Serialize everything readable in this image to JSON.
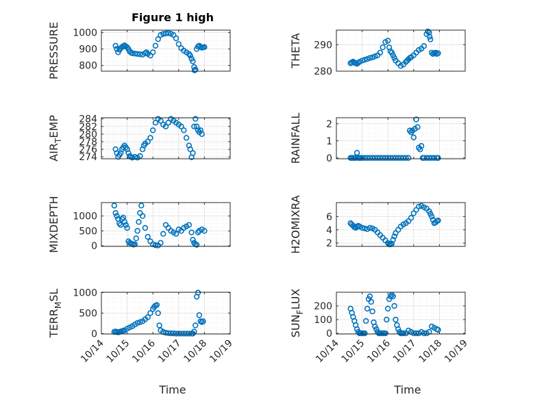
{
  "chart_data": [
    {
      "id": "pressure",
      "type": "scatter",
      "title": "Figure 1 high",
      "ylabel": "PRESSURE",
      "ylabel_parts": [],
      "xlabel": "",
      "yticks": [
        800,
        900,
        1000
      ],
      "ylim": [
        765,
        1015
      ],
      "xlim": [
        0,
        5
      ],
      "xticks": [
        0,
        1,
        2,
        3,
        4,
        5
      ],
      "xticklabels": [],
      "show_x_ticklabels": false,
      "grid": true,
      "color": "#0072BD",
      "series": [
        {
          "x": [
            0.55,
            0.6,
            0.65,
            0.7,
            0.75,
            0.8,
            0.85,
            0.9,
            0.95,
            1.0,
            1.05,
            1.1,
            1.15,
            1.2,
            1.3,
            1.4,
            1.5,
            1.6,
            1.7,
            1.75,
            1.8,
            1.9,
            2.0,
            2.1,
            2.2,
            2.3,
            2.4,
            2.5,
            2.6,
            2.7,
            2.8,
            2.9,
            3.0,
            3.1,
            3.2,
            3.3,
            3.4,
            3.45,
            3.5,
            3.55,
            3.6,
            3.62,
            3.65,
            3.7,
            3.75,
            3.8,
            3.85,
            3.9,
            3.95,
            4.0
          ],
          "y": [
            920,
            900,
            880,
            895,
            905,
            912,
            918,
            922,
            915,
            910,
            900,
            885,
            878,
            874,
            872,
            870,
            868,
            866,
            875,
            880,
            870,
            860,
            880,
            920,
            960,
            985,
            992,
            995,
            997,
            993,
            985,
            965,
            930,
            905,
            890,
            880,
            870,
            860,
            840,
            825,
            790,
            770,
            775,
            900,
            915,
            920,
            912,
            908,
            910,
            912
          ]
        }
      ]
    },
    {
      "id": "theta",
      "type": "scatter",
      "title": "",
      "ylabel": "THETA",
      "ylabel_parts": [],
      "xlabel": "",
      "yticks": [
        280,
        290
      ],
      "ylim": [
        280,
        295.5
      ],
      "xlim": [
        0,
        5
      ],
      "xticks": [
        0,
        1,
        2,
        3,
        4,
        5
      ],
      "xticklabels": [],
      "show_x_ticklabels": false,
      "grid": true,
      "color": "#0072BD",
      "series": [
        {
          "x": [
            0.55,
            0.6,
            0.65,
            0.7,
            0.75,
            0.8,
            0.85,
            0.9,
            1.0,
            1.1,
            1.2,
            1.3,
            1.4,
            1.5,
            1.6,
            1.7,
            1.8,
            1.9,
            2.0,
            2.05,
            2.1,
            2.15,
            2.2,
            2.25,
            2.3,
            2.4,
            2.5,
            2.6,
            2.7,
            2.75,
            2.8,
            2.85,
            2.9,
            3.0,
            3.1,
            3.2,
            3.3,
            3.4,
            3.5,
            3.55,
            3.6,
            3.62,
            3.65,
            3.7,
            3.75,
            3.8,
            3.85,
            3.9,
            3.95
          ],
          "y": [
            283,
            283.3,
            283.6,
            283.2,
            283.0,
            282.8,
            283.2,
            283.5,
            284.0,
            284.3,
            284.6,
            285.0,
            285.2,
            285.6,
            286.0,
            287.0,
            289.0,
            291.0,
            291.5,
            289.0,
            287.5,
            287.0,
            286.0,
            285.0,
            284.0,
            283.0,
            282.0,
            282.5,
            283.5,
            284.0,
            284.5,
            285.0,
            285.3,
            286.0,
            287.0,
            288.0,
            288.5,
            289.5,
            294.0,
            295.0,
            294.5,
            293.0,
            292.0,
            287.0,
            286.5,
            286.8,
            287.0,
            286.5,
            286.8
          ]
        }
      ]
    },
    {
      "id": "air-temp",
      "type": "scatter",
      "title": "",
      "ylabel": "AIR_TEMP",
      "ylabel_parts": [
        "AIR",
        "T",
        "EMP"
      ],
      "xlabel": "",
      "yticks": [
        274,
        276,
        278,
        280,
        282,
        284
      ],
      "ytick_labels": [
        "274",
        "276",
        "278",
        "280",
        "282",
        "284"
      ],
      "ylim": [
        273.5,
        284.3
      ],
      "xlim": [
        0,
        5
      ],
      "xticks": [
        0,
        1,
        2,
        3,
        4,
        5
      ],
      "xticklabels": [],
      "show_x_ticklabels": false,
      "grid": true,
      "color": "#0072BD",
      "series": [
        {
          "x": [
            0.55,
            0.6,
            0.65,
            0.7,
            0.75,
            0.8,
            0.85,
            0.9,
            0.95,
            1.0,
            1.05,
            1.1,
            1.15,
            1.2,
            1.3,
            1.4,
            1.5,
            1.6,
            1.65,
            1.7,
            1.8,
            1.9,
            2.0,
            2.1,
            2.2,
            2.3,
            2.4,
            2.5,
            2.6,
            2.7,
            2.8,
            2.9,
            3.0,
            3.1,
            3.2,
            3.3,
            3.4,
            3.45,
            3.5,
            3.55,
            3.6,
            3.65,
            3.7,
            3.75,
            3.8,
            3.85,
            3.9
          ],
          "y": [
            276,
            275,
            274,
            274.5,
            275,
            276,
            276.5,
            277,
            276.5,
            276,
            275,
            274.2,
            274.0,
            273.8,
            274.0,
            273.8,
            274.2,
            276,
            277,
            277.5,
            278,
            279,
            281,
            283,
            284,
            283.5,
            282.5,
            282,
            283,
            284,
            283.5,
            283,
            282.5,
            282,
            281,
            279,
            277,
            276,
            273.9,
            275,
            282,
            284,
            282,
            281,
            280.5,
            281,
            280
          ]
        }
      ]
    },
    {
      "id": "rainfall",
      "type": "scatter",
      "title": "",
      "ylabel": "RAINFALL",
      "ylabel_parts": [],
      "xlabel": "",
      "yticks": [
        0,
        1,
        2
      ],
      "ylim": [
        -0.05,
        2.35
      ],
      "xlim": [
        0,
        5
      ],
      "xticks": [
        0,
        1,
        2,
        3,
        4,
        5
      ],
      "xticklabels": [],
      "show_x_ticklabels": false,
      "grid": true,
      "color": "#0072BD",
      "series": [
        {
          "x": [
            0.55,
            0.6,
            0.65,
            0.7,
            0.75,
            0.8,
            0.85,
            0.9,
            0.95,
            1.0,
            1.1,
            1.2,
            1.3,
            1.4,
            1.5,
            1.6,
            1.7,
            1.8,
            1.9,
            2.0,
            2.1,
            2.2,
            2.3,
            2.4,
            2.5,
            2.6,
            2.7,
            2.8,
            2.85,
            2.9,
            2.95,
            3.0,
            3.05,
            3.1,
            3.15,
            3.2,
            3.25,
            3.3,
            3.35,
            3.4,
            3.5,
            3.6,
            3.7,
            3.8,
            3.9,
            3.95
          ],
          "y": [
            0,
            0,
            0,
            0,
            0,
            0.3,
            0,
            0,
            0,
            0,
            0,
            0,
            0,
            0,
            0,
            0,
            0,
            0,
            0,
            0,
            0,
            0,
            0,
            0,
            0,
            0,
            0,
            0,
            1.6,
            1.5,
            1.6,
            1.2,
            1.7,
            2.25,
            1.8,
            0.6,
            0.5,
            0.7,
            0,
            0,
            0,
            0,
            0,
            0,
            0,
            0
          ]
        }
      ]
    },
    {
      "id": "mixdepth",
      "type": "scatter",
      "title": "",
      "ylabel": "MIXDEPTH",
      "ylabel_parts": [],
      "xlabel": "",
      "yticks": [
        0,
        500,
        1000
      ],
      "ylim": [
        -20,
        1450
      ],
      "xlim": [
        0,
        5
      ],
      "xticks": [
        0,
        1,
        2,
        3,
        4,
        5
      ],
      "xticklabels": [],
      "show_x_ticklabels": false,
      "grid": true,
      "color": "#0072BD",
      "series": [
        {
          "x": [
            0.5,
            0.55,
            0.6,
            0.65,
            0.7,
            0.75,
            0.8,
            0.85,
            0.9,
            0.95,
            1.0,
            1.05,
            1.1,
            1.15,
            1.2,
            1.25,
            1.3,
            1.35,
            1.4,
            1.45,
            1.5,
            1.55,
            1.6,
            1.7,
            1.8,
            1.9,
            2.0,
            2.1,
            2.2,
            2.3,
            2.4,
            2.5,
            2.6,
            2.7,
            2.8,
            2.9,
            3.0,
            3.1,
            3.2,
            3.3,
            3.4,
            3.5,
            3.55,
            3.6,
            3.65,
            3.7,
            3.75,
            3.8,
            3.9,
            4.0
          ],
          "y": [
            1350,
            1100,
            1000,
            900,
            750,
            700,
            900,
            950,
            800,
            700,
            600,
            150,
            100,
            80,
            60,
            40,
            50,
            250,
            500,
            800,
            1100,
            1350,
            1000,
            600,
            300,
            150,
            50,
            20,
            10,
            100,
            400,
            700,
            600,
            500,
            450,
            400,
            550,
            500,
            600,
            650,
            700,
            450,
            200,
            100,
            50,
            30,
            450,
            500,
            550,
            500
          ]
        }
      ]
    },
    {
      "id": "h2omixra",
      "type": "scatter",
      "title": "",
      "ylabel": "H2OMIXRA",
      "ylabel_parts": [],
      "xlabel": "",
      "yticks": [
        2,
        4,
        6
      ],
      "ylim": [
        1.5,
        8.1
      ],
      "xlim": [
        0,
        5
      ],
      "xticks": [
        0,
        1,
        2,
        3,
        4,
        5
      ],
      "xticklabels": [],
      "show_x_ticklabels": false,
      "grid": true,
      "color": "#0072BD",
      "series": [
        {
          "x": [
            0.55,
            0.6,
            0.65,
            0.7,
            0.75,
            0.8,
            0.85,
            0.9,
            1.0,
            1.1,
            1.2,
            1.3,
            1.4,
            1.5,
            1.6,
            1.7,
            1.8,
            1.9,
            2.0,
            2.05,
            2.1,
            2.15,
            2.2,
            2.25,
            2.3,
            2.4,
            2.5,
            2.6,
            2.7,
            2.8,
            2.9,
            3.0,
            3.1,
            3.2,
            3.3,
            3.4,
            3.5,
            3.6,
            3.65,
            3.7,
            3.75,
            3.8,
            3.85,
            3.9,
            3.95
          ],
          "y": [
            5.0,
            4.8,
            4.6,
            4.4,
            4.3,
            4.5,
            4.6,
            4.5,
            4.3,
            4.2,
            4.1,
            4.3,
            4.2,
            4.0,
            3.6,
            3.2,
            2.8,
            2.4,
            2.0,
            1.8,
            1.8,
            1.9,
            2.5,
            3.0,
            3.5,
            4.0,
            4.5,
            4.8,
            5.0,
            5.3,
            5.8,
            6.5,
            7.0,
            7.5,
            7.6,
            7.4,
            7.2,
            6.8,
            6.4,
            6.0,
            5.5,
            5.0,
            5.1,
            5.3,
            5.4
          ]
        }
      ]
    },
    {
      "id": "terr-msl",
      "type": "scatter",
      "title": "",
      "ylabel": "TERR_MSL",
      "ylabel_parts": [
        "TERR",
        "M",
        "SL"
      ],
      "xlabel": "Time",
      "yticks": [
        0,
        500,
        1000
      ],
      "ylim": [
        -10,
        1010
      ],
      "xlim": [
        0,
        5
      ],
      "xticks": [
        0,
        1,
        2,
        3,
        4,
        5
      ],
      "xticklabels": [
        "10/14",
        "10/15",
        "10/16",
        "10/17",
        "10/18",
        "10/19"
      ],
      "show_x_ticklabels": true,
      "grid": true,
      "color": "#0072BD",
      "series": [
        {
          "x": [
            0.5,
            0.55,
            0.6,
            0.65,
            0.7,
            0.75,
            0.8,
            0.85,
            0.9,
            1.0,
            1.1,
            1.2,
            1.3,
            1.4,
            1.5,
            1.6,
            1.7,
            1.8,
            1.9,
            2.0,
            2.05,
            2.1,
            2.15,
            2.2,
            2.25,
            2.3,
            2.4,
            2.5,
            2.6,
            2.7,
            2.8,
            2.9,
            3.0,
            3.1,
            3.2,
            3.3,
            3.4,
            3.5,
            3.55,
            3.6,
            3.65,
            3.7,
            3.75,
            3.8,
            3.85,
            3.9,
            3.95
          ],
          "y": [
            40,
            50,
            40,
            30,
            40,
            50,
            60,
            70,
            80,
            120,
            150,
            180,
            220,
            260,
            280,
            300,
            350,
            400,
            500,
            600,
            650,
            680,
            700,
            500,
            200,
            80,
            40,
            20,
            10,
            5,
            5,
            0,
            0,
            0,
            0,
            0,
            0,
            0,
            0,
            50,
            200,
            900,
            1000,
            450,
            300,
            280,
            300
          ]
        }
      ]
    },
    {
      "id": "sun-flux",
      "type": "scatter",
      "title": "",
      "ylabel": "SUN_FLUX",
      "ylabel_parts": [
        "SUN",
        "F",
        "LUX"
      ],
      "xlabel": "Time",
      "yticks": [
        0,
        100,
        200
      ],
      "ylim": [
        -5,
        300
      ],
      "xlim": [
        0,
        5
      ],
      "xticks": [
        0,
        1,
        2,
        3,
        4,
        5
      ],
      "xticklabels": [
        "10/14",
        "10/15",
        "10/16",
        "10/17",
        "10/18",
        "10/19"
      ],
      "show_x_ticklabels": true,
      "grid": true,
      "color": "#0072BD",
      "series": [
        {
          "x": [
            0.55,
            0.6,
            0.65,
            0.7,
            0.75,
            0.8,
            0.85,
            0.9,
            0.95,
            1.0,
            1.05,
            1.1,
            1.15,
            1.2,
            1.25,
            1.3,
            1.35,
            1.4,
            1.45,
            1.5,
            1.55,
            1.6,
            1.65,
            1.7,
            1.75,
            1.8,
            1.85,
            1.9,
            1.95,
            2.0,
            2.05,
            2.1,
            2.15,
            2.2,
            2.25,
            2.3,
            2.35,
            2.4,
            2.45,
            2.5,
            2.55,
            2.6,
            2.7,
            2.8,
            2.9,
            3.0,
            3.1,
            3.2,
            3.3,
            3.4,
            3.5,
            3.6,
            3.7,
            3.8,
            3.9,
            3.95
          ],
          "y": [
            180,
            150,
            120,
            90,
            60,
            30,
            10,
            0,
            0,
            0,
            0,
            0,
            90,
            180,
            250,
            270,
            230,
            160,
            80,
            50,
            30,
            10,
            0,
            0,
            0,
            0,
            0,
            0,
            100,
            180,
            250,
            270,
            280,
            270,
            200,
            100,
            60,
            30,
            10,
            0,
            0,
            0,
            0,
            20,
            10,
            0,
            0,
            0,
            10,
            0,
            0,
            10,
            50,
            40,
            30,
            25
          ]
        }
      ]
    }
  ]
}
